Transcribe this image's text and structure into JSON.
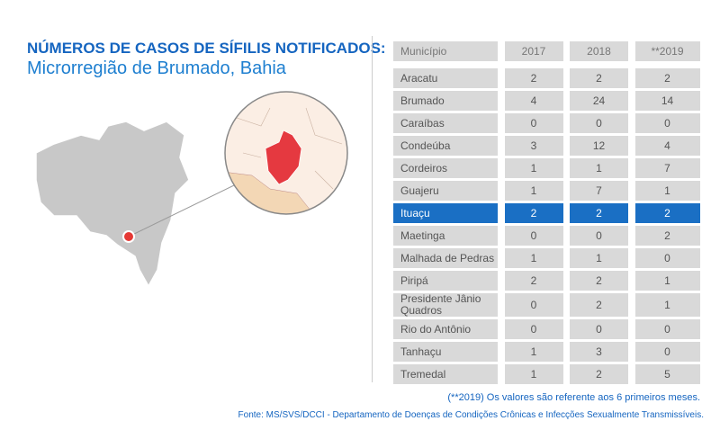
{
  "header": {
    "title": "NÚMEROS DE CASOS DE SÍFILIS NOTIFICADOS:",
    "subtitle": "Microrregião de Brumado, Bahia"
  },
  "table": {
    "columns": [
      "Município",
      "2017",
      "2018",
      "**2019"
    ],
    "rows": [
      [
        "Aracatu",
        2,
        2,
        2
      ],
      [
        "Brumado",
        4,
        24,
        14
      ],
      [
        "Caraíbas",
        0,
        0,
        0
      ],
      [
        "Condeúba",
        3,
        12,
        4
      ],
      [
        "Cordeiros",
        1,
        1,
        7
      ],
      [
        "Guajeru",
        1,
        7,
        1
      ],
      [
        "Ituaçu",
        2,
        2,
        2
      ],
      [
        "Maetinga",
        0,
        0,
        2
      ],
      [
        "Malhada de Pedras",
        1,
        1,
        0
      ],
      [
        "Piripá",
        2,
        2,
        1
      ],
      [
        "Presidente Jânio Quadros",
        0,
        2,
        1
      ],
      [
        "Rio do Antônio",
        0,
        0,
        0
      ],
      [
        "Tanhaçu",
        1,
        3,
        0
      ],
      [
        "Tremedal",
        1,
        2,
        5
      ]
    ]
  },
  "footnote": "(**2019) Os valores são referente aos 6 primeiros meses.",
  "source": "Fonte: MS/SVS/DCCI - Departamento de Doenças de Condições Crônicas e Infecções Sexualmente Transmissíveis."
}
